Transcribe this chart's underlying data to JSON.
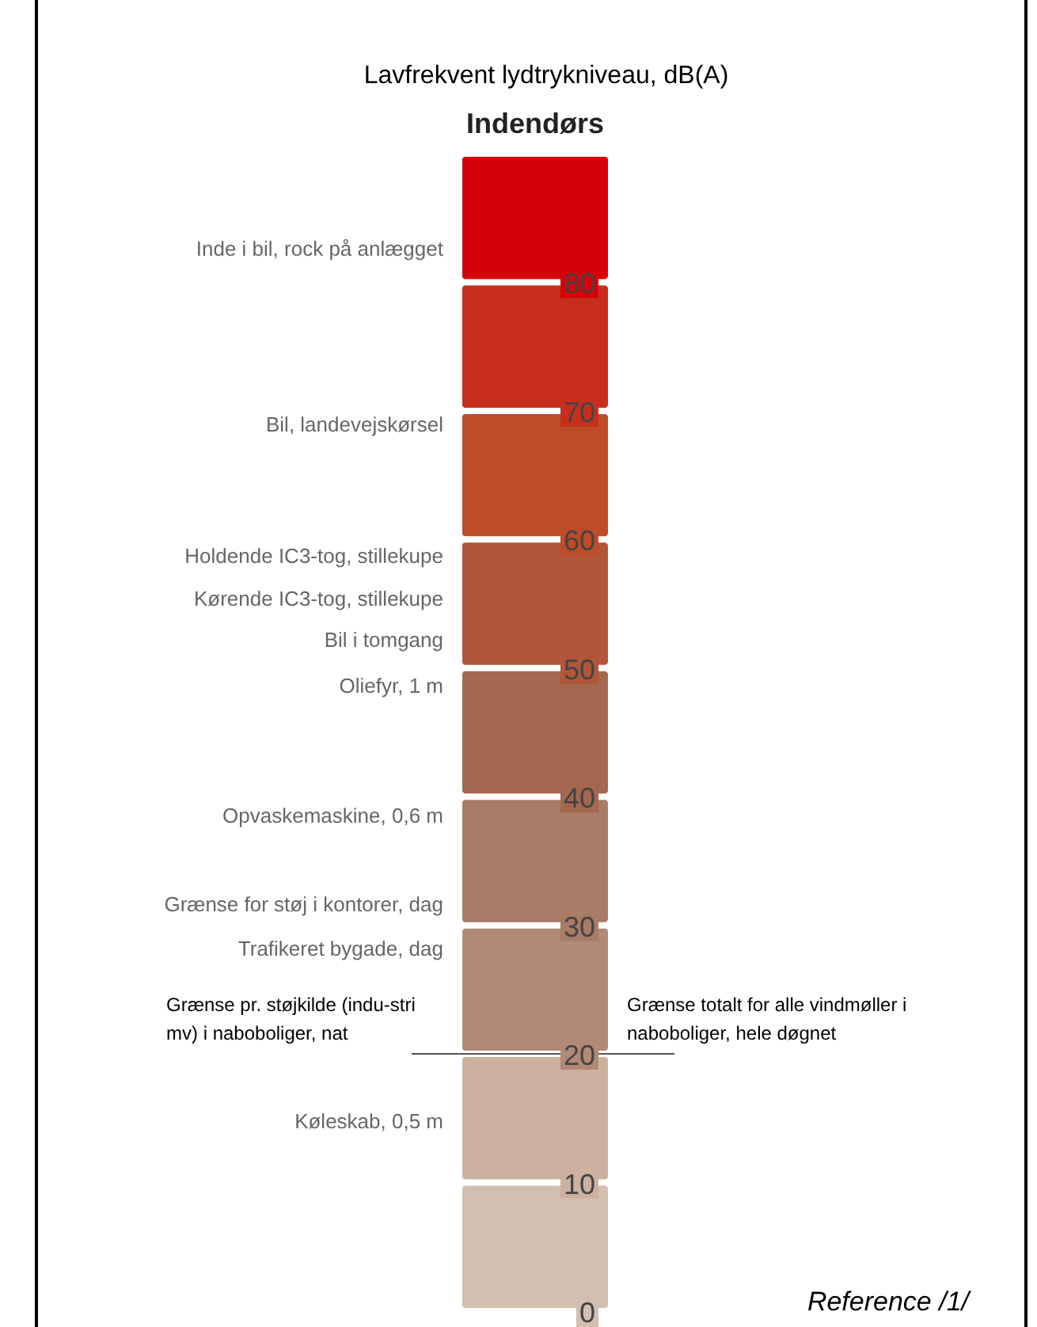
{
  "chart_data": {
    "type": "bar",
    "title": "Lavfrekvent lydtrykniveau, dB(A)",
    "stacked": true,
    "categories": [
      "Indendørs"
    ],
    "series": [
      {
        "color": "#d3bfb0",
        "values": [
          10
        ]
      },
      {
        "color": "#cdb19f",
        "values": [
          10
        ]
      },
      {
        "color": "#b08a76",
        "values": [
          10
        ]
      },
      {
        "color": "#a87c66",
        "values": [
          10
        ]
      },
      {
        "color": "#a4674f",
        "values": [
          10
        ]
      },
      {
        "color": "#b2563a",
        "values": [
          10
        ]
      },
      {
        "color": "#bf4b28",
        "values": [
          10
        ]
      },
      {
        "color": "#c72e1e",
        "values": [
          10
        ]
      },
      {
        "color": "#d50008",
        "values": [
          10
        ]
      }
    ],
    "ylim": [
      0,
      90
    ],
    "yticks": [
      0,
      10,
      20,
      30,
      40,
      50,
      60,
      70,
      80
    ],
    "ref_lines": [
      {
        "axis": "y",
        "value": 20,
        "label": "Grænse pr. støjkilde (indu-stri mv) i naboboliger, nat",
        "color": "#555555"
      }
    ],
    "annotations": [
      "Inde i bil, rock på anlægget",
      "Bil, landevejskørsel",
      "Holdende IC3-tog, stillekupe",
      "Kørende IC3-tog, stillekupe",
      "Bil i tomgang",
      "Oliefyr, 1 m",
      "Opvaskemaskine, 0,6 m",
      "Grænse for støj i kontorer, dag",
      "Trafikeret bygade, dag",
      "Køleskab, 0,5 m",
      "Grænse totalt for alle vindmøller i naboboliger, hele døgnet",
      "Reference /1/"
    ]
  }
}
